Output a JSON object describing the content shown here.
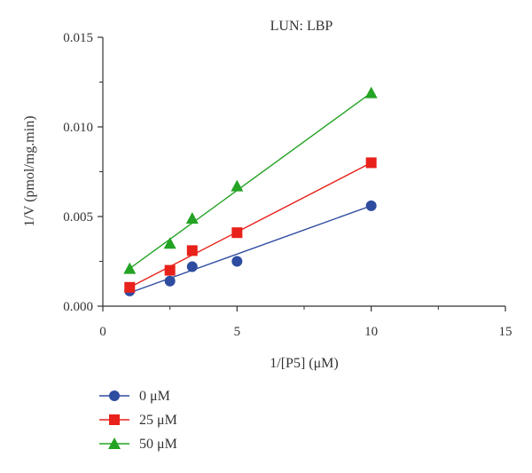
{
  "chart_data": {
    "type": "line",
    "title": "LUN: LBP",
    "xlabel": "1/[P5] (μM)",
    "ylabel": "1/V (pmol/mg.min)",
    "xlim": [
      0,
      15
    ],
    "ylim": [
      0,
      0.015
    ],
    "x_ticks": [
      0,
      5,
      10,
      15
    ],
    "x_tick_labels": [
      "0",
      "5",
      "10",
      "15"
    ],
    "y_ticks": [
      0,
      0.005,
      0.01,
      0.015
    ],
    "y_tick_labels": [
      "0.000",
      "0.005",
      "0.010",
      "0.015"
    ],
    "grid": false,
    "legend_position": "bottom-left",
    "series": [
      {
        "name": "0 μM",
        "color": "#2e4ca0",
        "marker": "circle",
        "x": [
          1,
          2.5,
          3.33,
          5,
          10
        ],
        "y": [
          0.00085,
          0.0014,
          0.0022,
          0.0025,
          0.0056
        ],
        "fit": [
          [
            1,
            0.00075
          ],
          [
            10,
            0.0056
          ]
        ]
      },
      {
        "name": "25 μM",
        "color": "#e8211a",
        "marker": "square",
        "x": [
          1,
          2.5,
          3.33,
          5,
          10
        ],
        "y": [
          0.00105,
          0.002,
          0.0031,
          0.0041,
          0.008
        ],
        "fit": [
          [
            1,
            0.00105
          ],
          [
            10,
            0.008
          ]
        ]
      },
      {
        "name": "50 μM",
        "color": "#24a324",
        "marker": "triangle",
        "x": [
          1,
          2.5,
          3.33,
          5,
          10
        ],
        "y": [
          0.0021,
          0.0035,
          0.0049,
          0.0067,
          0.0119
        ],
        "fit": [
          [
            1,
            0.0021
          ],
          [
            10,
            0.0119
          ]
        ]
      }
    ]
  }
}
